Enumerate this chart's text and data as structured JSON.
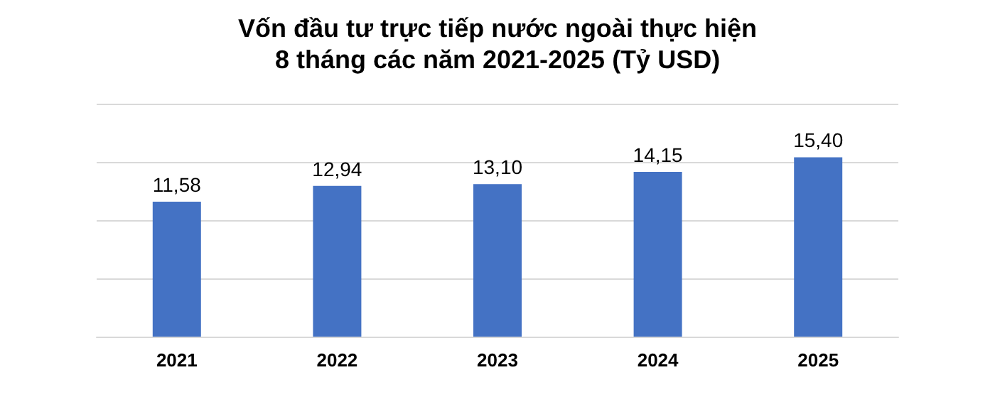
{
  "chart_data": {
    "type": "bar",
    "title": "Vốn đầu tư trực tiếp nước ngoài thực hiện\n8 tháng các năm 2021-2025 (Tỷ USD)",
    "categories": [
      "2021",
      "2022",
      "2023",
      "2024",
      "2025"
    ],
    "values": [
      11.58,
      12.94,
      13.1,
      14.15,
      15.4
    ],
    "value_labels": [
      "11,58",
      "12,94",
      "13,10",
      "14,15",
      "15,40"
    ],
    "color": "#4472c4",
    "ylim": [
      0,
      20
    ],
    "yticks": [
      0,
      5,
      10,
      15,
      20
    ],
    "grid": "y",
    "tick_labels": "x"
  }
}
